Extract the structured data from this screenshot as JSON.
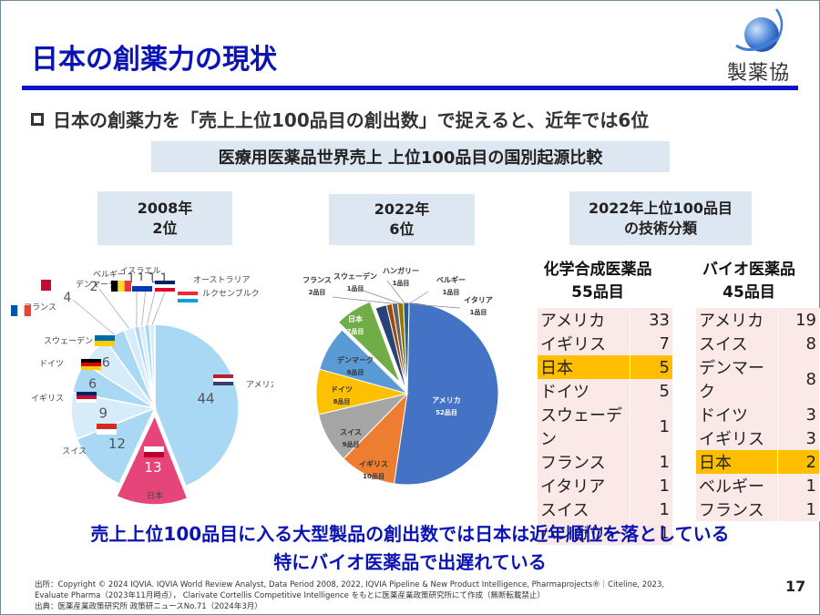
{
  "slide": {
    "title": "日本の創薬力の現状",
    "logo_text": "製薬協",
    "bullet": "日本の創薬力を「売上上位100品目の創出数」で捉えると、近年では6位",
    "subheading": "医療用医薬品世界売上 上位100品目の国別起源比較",
    "page_number": "17",
    "conclusion_line1": "売上上位100品目に入る大型製品の創出数では日本は近年順位を落としている",
    "conclusion_line2": "特にバイオ医薬品で出遅れている",
    "footnotes": [
      "出所：Copyright © 2024 IQVIA. IQVIA World Review Analyst, Data Period 2008, 2022, IQVIA Pipeline & New Product Intelligence, Pharmaprojects®｜Citeline, 2023,",
      "Evaluate Pharma（2023年11月時点）， Clarivate Cortellis Competitive Intelligence をもとに医薬産業政策研究所にて作成（無断転載禁止）",
      "出典：医薬産業政策研究所 政策研ニュースNo.71（2024年3月）"
    ],
    "colors": {
      "title_blue": "#0a14b4",
      "highlight": "#ffbf00",
      "japan_2008": "#e6457a",
      "japan_2022": "#5aa845",
      "panel_bg": "#dde7f2",
      "table_bg": "#fbe9e7"
    }
  },
  "chart_data": [
    {
      "type": "pie",
      "title": "2008年",
      "subtitle": "2位",
      "unit": "",
      "categories": [
        "アメリカ",
        "日本",
        "スイス",
        "イギリス",
        "ドイツ",
        "スウェーデン",
        "フランス",
        "デンマーク",
        "ベルギー",
        "イスラエル",
        "オーストラリア",
        "ルクセンブルク"
      ],
      "values": [
        44,
        13,
        12,
        9,
        6,
        6,
        4,
        2,
        1,
        1,
        1,
        1
      ],
      "value_labels": [
        "44",
        "13",
        "12",
        "9",
        "6",
        "6",
        "4",
        "2",
        "1",
        "1",
        "1",
        "1"
      ],
      "highlight": "日本",
      "colors": [
        "#a9d8f5",
        "#e6457a",
        "#a9d8f5",
        "#d6ecfa",
        "#a9d8f5",
        "#d6ecfa",
        "#a9d8f5",
        "#d6ecfa",
        "#a9d8f5",
        "#d6ecfa",
        "#a9d8f5",
        "#d6ecfa"
      ]
    },
    {
      "type": "pie",
      "title": "2022年",
      "subtitle": "6位",
      "categories": [
        "アメリカ",
        "イギリス",
        "スイス",
        "ドイツ",
        "デンマーク",
        "日本",
        "フランス",
        "スウェーデン",
        "ハンガリー",
        "ベルギー",
        "イタリア"
      ],
      "values": [
        52,
        10,
        9,
        8,
        8,
        7,
        2,
        1,
        1,
        1,
        1
      ],
      "value_labels": [
        "52品目",
        "10品目",
        "9品目",
        "8品目",
        "8品目",
        "7品目",
        "2品目",
        "1品目",
        "1品目",
        "1品目",
        "1品目"
      ],
      "highlight": "日本",
      "colors": [
        "#4472c4",
        "#ed7d31",
        "#a5a5a5",
        "#ffc000",
        "#5b9bd5",
        "#70ad47",
        "#264478",
        "#9e480e",
        "#636363",
        "#997300",
        "#255e91"
      ]
    },
    {
      "type": "table",
      "title": "2022年上位100品目の技術分類",
      "tables": [
        {
          "heading": "化学合成医薬品",
          "subheading": "55品目",
          "rows": [
            {
              "country": "アメリカ",
              "count": 33
            },
            {
              "country": "イギリス",
              "count": 7
            },
            {
              "country": "日本",
              "count": 5,
              "highlight": true
            },
            {
              "country": "ドイツ",
              "count": 5
            },
            {
              "country": "スウェーデン",
              "count": 1
            },
            {
              "country": "フランス",
              "count": 1
            },
            {
              "country": "イタリア",
              "count": 1
            },
            {
              "country": "スイス",
              "count": 1
            },
            {
              "country": "ハンガリー",
              "count": 1
            }
          ]
        },
        {
          "heading": "バイオ医薬品",
          "subheading": "45品目",
          "rows": [
            {
              "country": "アメリカ",
              "count": 19
            },
            {
              "country": "スイス",
              "count": 8
            },
            {
              "country": "デンマーク",
              "count": 8
            },
            {
              "country": "ドイツ",
              "count": 3
            },
            {
              "country": "イギリス",
              "count": 3
            },
            {
              "country": "日本",
              "count": 2,
              "highlight": true
            },
            {
              "country": "ベルギー",
              "count": 1
            },
            {
              "country": "フランス",
              "count": 1
            }
          ]
        }
      ]
    }
  ]
}
